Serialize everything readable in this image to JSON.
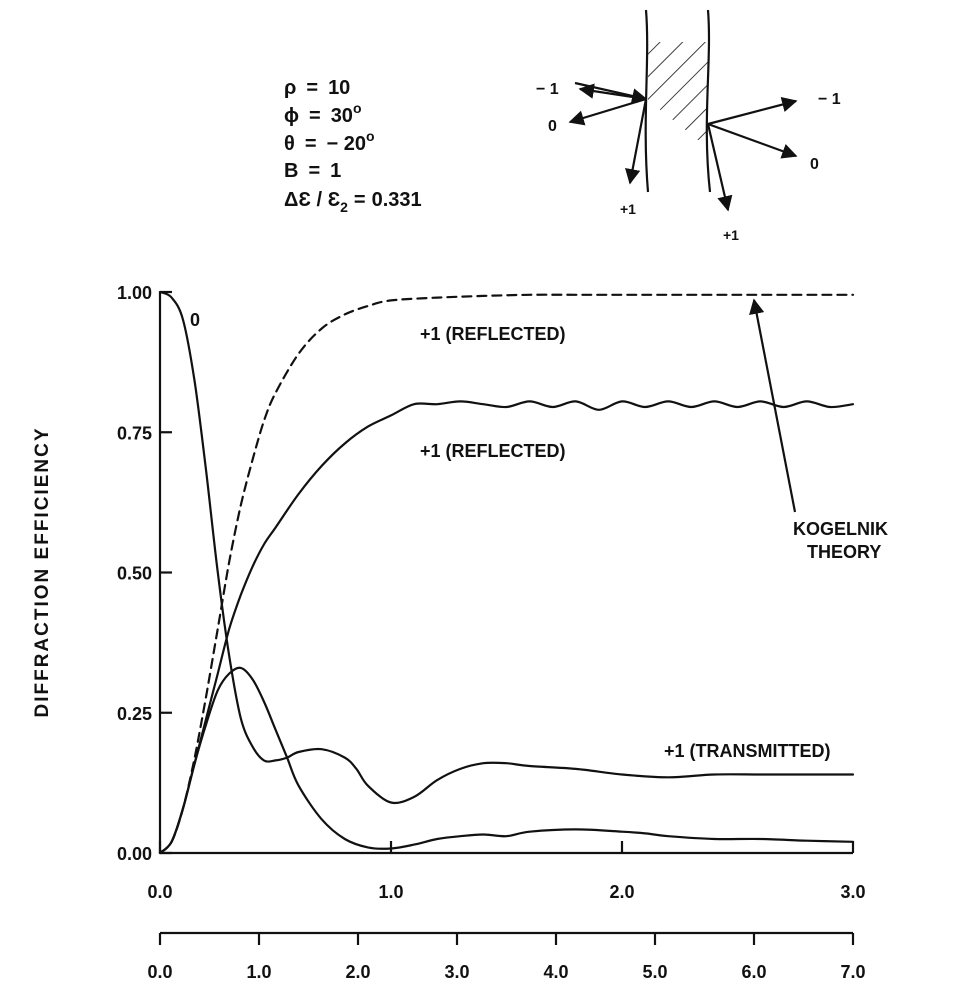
{
  "params": [
    {
      "name": "ρ",
      "op": "=",
      "value": "10",
      "sup": ""
    },
    {
      "name": "ϕ",
      "op": "=",
      "value": "30",
      "sup": "o"
    },
    {
      "name": "θ",
      "op": "=",
      "value": "− 20",
      "sup": "o"
    },
    {
      "name": "B",
      "op": "=",
      "value": "1",
      "sup": ""
    },
    {
      "name": "ΔƐ / Ɛ",
      "sub": "2",
      "op": "=",
      "value": "0.331",
      "sup": ""
    }
  ],
  "diagram": {
    "left_in_label": "− 1",
    "left_zero_label": "0",
    "left_plus_label": "+1",
    "right_minus_label": "− 1",
    "right_zero_label": "0",
    "right_plus_label": "+1"
  },
  "chart_data": {
    "type": "line",
    "ylabel": "DIFFRACTION EFFICIENCY",
    "xlabel": "",
    "ylim": [
      0,
      1
    ],
    "xlim": [
      0,
      3
    ],
    "y_ticks": [
      "0.00",
      "0.25",
      "0.50",
      "0.75",
      "1.00"
    ],
    "x_ticks": [
      "0.0",
      "1.0",
      "2.0",
      "3.0"
    ],
    "x2_ticks": [
      "0.0",
      "1.0",
      "2.0",
      "3.0",
      "4.0",
      "5.0",
      "6.0",
      "7.0"
    ],
    "x2_range": [
      0,
      7
    ],
    "grid": false,
    "series": [
      {
        "name": "0",
        "style": "solid",
        "x": [
          0,
          0.05,
          0.1,
          0.15,
          0.2,
          0.25,
          0.3,
          0.35,
          0.4,
          0.45,
          0.5,
          0.55,
          0.6,
          0.7,
          0.8,
          0.85,
          0.9,
          1.0,
          1.1,
          1.2,
          1.3,
          1.4,
          1.5,
          1.6,
          1.8,
          2.0,
          2.2,
          2.4,
          2.6,
          2.8,
          3.0
        ],
        "y": [
          1.0,
          0.99,
          0.95,
          0.84,
          0.68,
          0.5,
          0.35,
          0.24,
          0.19,
          0.165,
          0.165,
          0.17,
          0.18,
          0.185,
          0.17,
          0.15,
          0.12,
          0.09,
          0.1,
          0.13,
          0.15,
          0.16,
          0.16,
          0.155,
          0.15,
          0.14,
          0.135,
          0.14,
          0.14,
          0.14,
          0.14
        ]
      },
      {
        "name": "+1 (REFLECTED)",
        "style": "solid",
        "x": [
          0,
          0.05,
          0.1,
          0.15,
          0.2,
          0.25,
          0.3,
          0.35,
          0.4,
          0.45,
          0.5,
          0.6,
          0.7,
          0.8,
          0.9,
          1.0,
          1.1,
          1.2,
          1.3,
          1.4,
          1.5,
          1.6,
          1.7,
          1.8,
          1.9,
          2.0,
          2.1,
          2.2,
          2.3,
          2.4,
          2.5,
          2.6,
          2.7,
          2.8,
          2.9,
          3.0
        ],
        "y": [
          0.0,
          0.02,
          0.08,
          0.16,
          0.24,
          0.32,
          0.4,
          0.46,
          0.51,
          0.55,
          0.58,
          0.64,
          0.69,
          0.73,
          0.76,
          0.78,
          0.8,
          0.8,
          0.805,
          0.8,
          0.795,
          0.805,
          0.795,
          0.805,
          0.79,
          0.805,
          0.795,
          0.805,
          0.795,
          0.805,
          0.795,
          0.805,
          0.795,
          0.805,
          0.795,
          0.8
        ]
      },
      {
        "name": "+1 (TRANSMITTED)",
        "style": "solid",
        "x": [
          0,
          0.05,
          0.1,
          0.15,
          0.2,
          0.25,
          0.3,
          0.35,
          0.4,
          0.45,
          0.5,
          0.55,
          0.6,
          0.7,
          0.8,
          0.9,
          1.0,
          1.1,
          1.2,
          1.3,
          1.4,
          1.5,
          1.6,
          1.8,
          2.0,
          2.1,
          2.2,
          2.4,
          2.6,
          2.8,
          3.0
        ],
        "y": [
          0.0,
          0.02,
          0.08,
          0.16,
          0.23,
          0.29,
          0.32,
          0.33,
          0.31,
          0.27,
          0.22,
          0.17,
          0.12,
          0.06,
          0.025,
          0.01,
          0.008,
          0.015,
          0.025,
          0.03,
          0.033,
          0.03,
          0.038,
          0.042,
          0.038,
          0.035,
          0.03,
          0.025,
          0.025,
          0.022,
          0.02
        ]
      },
      {
        "name": "KOGELNIK THEORY",
        "style": "dashed",
        "x": [
          0,
          0.05,
          0.1,
          0.15,
          0.2,
          0.25,
          0.3,
          0.35,
          0.4,
          0.45,
          0.5,
          0.6,
          0.7,
          0.8,
          0.9,
          1.0,
          1.2,
          1.4,
          1.6,
          1.8,
          2.0,
          2.5,
          3.0
        ],
        "y": [
          0.0,
          0.02,
          0.08,
          0.17,
          0.28,
          0.4,
          0.52,
          0.62,
          0.7,
          0.77,
          0.82,
          0.89,
          0.935,
          0.96,
          0.975,
          0.985,
          0.99,
          0.993,
          0.995,
          0.995,
          0.995,
          0.995,
          0.995
        ]
      }
    ],
    "annotations": [
      {
        "text": "0"
      },
      {
        "text": "+1 (REFLECTED)"
      },
      {
        "text": "+1 (REFLECTED)"
      },
      {
        "text": "+1 (TRANSMITTED)"
      },
      {
        "text": "KOGELNIK"
      },
      {
        "text": "THEORY"
      }
    ]
  }
}
